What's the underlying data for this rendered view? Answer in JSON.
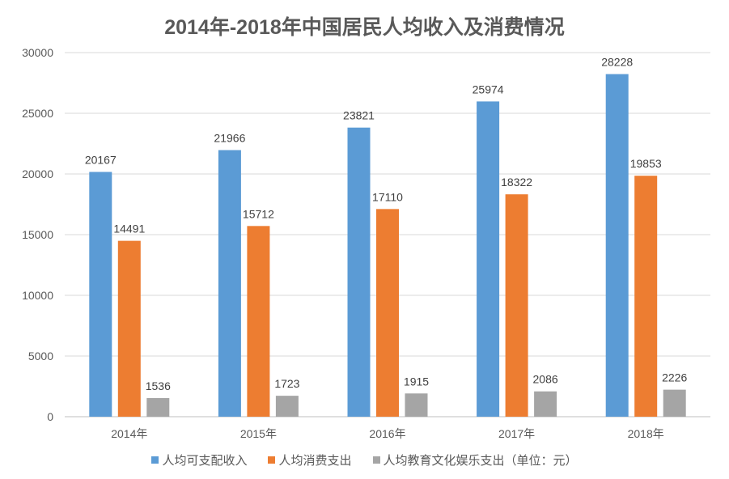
{
  "chart_data": {
    "type": "bar",
    "title": "2014年-2018年中国居民人均收入及消费情况",
    "categories": [
      "2014年",
      "2015年",
      "2016年",
      "2017年",
      "2018年"
    ],
    "series": [
      {
        "name": "人均可支配收入",
        "color": "#5B9BD5",
        "values": [
          20167,
          21966,
          23821,
          25974,
          28228
        ]
      },
      {
        "name": "人均消费支出",
        "color": "#ED7D31",
        "values": [
          14491,
          15712,
          17110,
          18322,
          19853
        ]
      },
      {
        "name": "人均教育文化娱乐支出（单位：元）",
        "color": "#A5A5A5",
        "values": [
          1536,
          1723,
          1915,
          2086,
          2226
        ]
      }
    ],
    "ylim": [
      0,
      30000
    ],
    "yticks": [
      0,
      5000,
      10000,
      15000,
      20000,
      25000,
      30000
    ],
    "grid": true,
    "legend": "bottom",
    "data_labels": true
  }
}
